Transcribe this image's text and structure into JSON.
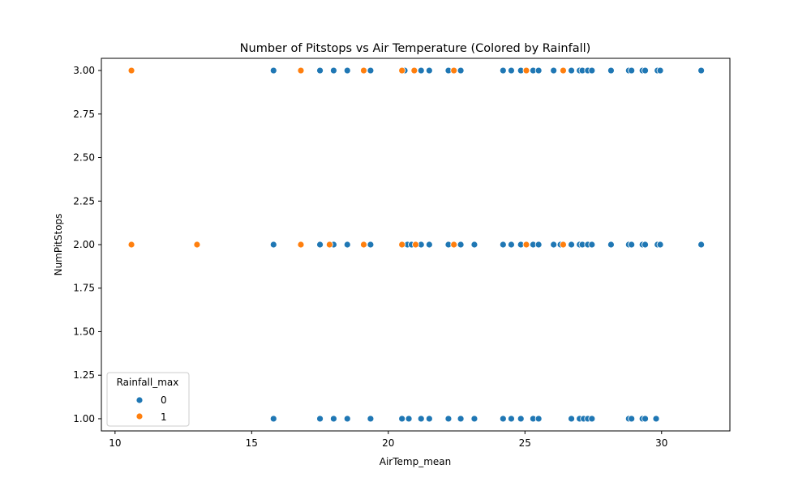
{
  "chart_data": {
    "type": "scatter",
    "title": "Number of Pitstops vs Air Temperature (Colored by Rainfall)",
    "xlabel": "AirTemp_mean",
    "ylabel": "NumPitStops",
    "xlim": [
      9.5,
      32.5
    ],
    "ylim": [
      0.93,
      3.07
    ],
    "xticks": [
      10,
      15,
      20,
      25,
      30
    ],
    "yticks": [
      1.0,
      1.25,
      1.5,
      1.75,
      2.0,
      2.25,
      2.5,
      2.75,
      3.0
    ],
    "ytick_labels": [
      "1.00",
      "1.25",
      "1.50",
      "1.75",
      "2.00",
      "2.25",
      "2.50",
      "2.75",
      "3.00"
    ],
    "grid": false,
    "legend": {
      "title": "Rainfall_max",
      "placement": "lower-left"
    },
    "series": [
      {
        "name": "0",
        "color": "#1f77b4",
        "points": [
          [
            15.8,
            3
          ],
          [
            17.5,
            3
          ],
          [
            18.0,
            3
          ],
          [
            18.5,
            3
          ],
          [
            19.35,
            3
          ],
          [
            20.6,
            3
          ],
          [
            21.2,
            3
          ],
          [
            21.5,
            3
          ],
          [
            22.2,
            3
          ],
          [
            22.65,
            3
          ],
          [
            24.2,
            3
          ],
          [
            24.5,
            3
          ],
          [
            24.85,
            3
          ],
          [
            25.3,
            3
          ],
          [
            25.5,
            3
          ],
          [
            26.05,
            3
          ],
          [
            26.7,
            3
          ],
          [
            27.0,
            3
          ],
          [
            27.1,
            3
          ],
          [
            27.3,
            3
          ],
          [
            27.45,
            3
          ],
          [
            28.15,
            3
          ],
          [
            28.8,
            3
          ],
          [
            28.9,
            3
          ],
          [
            29.3,
            3
          ],
          [
            29.4,
            3
          ],
          [
            29.85,
            3
          ],
          [
            29.95,
            3
          ],
          [
            31.45,
            3
          ],
          [
            15.8,
            2
          ],
          [
            17.5,
            2
          ],
          [
            18.0,
            2
          ],
          [
            18.5,
            2
          ],
          [
            19.35,
            2
          ],
          [
            20.7,
            2
          ],
          [
            20.85,
            2
          ],
          [
            21.2,
            2
          ],
          [
            21.5,
            2
          ],
          [
            22.2,
            2
          ],
          [
            22.65,
            2
          ],
          [
            23.15,
            2
          ],
          [
            24.2,
            2
          ],
          [
            24.5,
            2
          ],
          [
            24.85,
            2
          ],
          [
            25.3,
            2
          ],
          [
            25.5,
            2
          ],
          [
            26.05,
            2
          ],
          [
            26.3,
            2
          ],
          [
            26.7,
            2
          ],
          [
            27.0,
            2
          ],
          [
            27.1,
            2
          ],
          [
            27.3,
            2
          ],
          [
            27.45,
            2
          ],
          [
            28.15,
            2
          ],
          [
            28.8,
            2
          ],
          [
            28.9,
            2
          ],
          [
            29.3,
            2
          ],
          [
            29.4,
            2
          ],
          [
            29.85,
            2
          ],
          [
            29.95,
            2
          ],
          [
            31.45,
            2
          ],
          [
            15.8,
            1
          ],
          [
            17.5,
            1
          ],
          [
            18.0,
            1
          ],
          [
            18.5,
            1
          ],
          [
            19.35,
            1
          ],
          [
            20.5,
            1
          ],
          [
            20.75,
            1
          ],
          [
            21.2,
            1
          ],
          [
            21.5,
            1
          ],
          [
            22.2,
            1
          ],
          [
            22.65,
            1
          ],
          [
            23.15,
            1
          ],
          [
            24.2,
            1
          ],
          [
            24.5,
            1
          ],
          [
            24.85,
            1
          ],
          [
            25.3,
            1
          ],
          [
            25.5,
            1
          ],
          [
            26.7,
            1
          ],
          [
            27.0,
            1
          ],
          [
            27.15,
            1
          ],
          [
            27.3,
            1
          ],
          [
            27.45,
            1
          ],
          [
            28.8,
            1
          ],
          [
            28.9,
            1
          ],
          [
            29.3,
            1
          ],
          [
            29.4,
            1
          ],
          [
            29.8,
            1
          ]
        ]
      },
      {
        "name": "1",
        "color": "#ff7f0e",
        "points": [
          [
            10.6,
            3
          ],
          [
            16.8,
            3
          ],
          [
            19.1,
            3
          ],
          [
            20.5,
            3
          ],
          [
            20.95,
            3
          ],
          [
            22.4,
            3
          ],
          [
            25.05,
            3
          ],
          [
            26.4,
            3
          ],
          [
            10.6,
            2
          ],
          [
            13.0,
            2
          ],
          [
            16.8,
            2
          ],
          [
            17.85,
            2
          ],
          [
            19.1,
            2
          ],
          [
            20.5,
            2
          ],
          [
            21.0,
            2
          ],
          [
            22.4,
            2
          ],
          [
            25.05,
            2
          ],
          [
            26.4,
            2
          ]
        ]
      }
    ]
  }
}
